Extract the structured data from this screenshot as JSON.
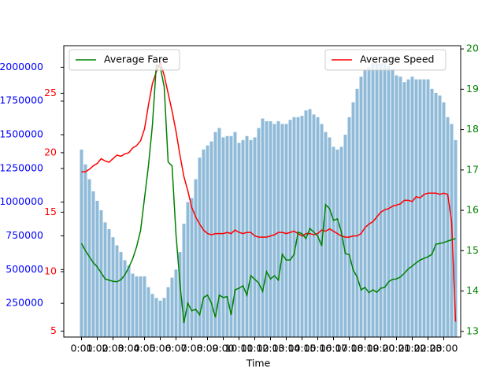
{
  "chart_data": {
    "type": "combo",
    "xlabel": "Time",
    "categories": [
      "0:00",
      null,
      null,
      null,
      "1:00",
      null,
      null,
      null,
      "2:00",
      null,
      null,
      null,
      "3:00",
      null,
      null,
      null,
      "4:00",
      null,
      null,
      null,
      "5:00",
      null,
      null,
      null,
      "6:00",
      null,
      null,
      null,
      "7:00",
      null,
      null,
      null,
      "8:00",
      null,
      null,
      null,
      "9:00",
      null,
      null,
      null,
      "10:00",
      null,
      null,
      null,
      "11:00",
      null,
      null,
      null,
      "12:00",
      null,
      null,
      null,
      "13:00",
      null,
      null,
      null,
      "14:00",
      null,
      null,
      null,
      "15:00",
      null,
      null,
      null,
      "16:00",
      null,
      null,
      null,
      "17:00",
      null,
      null,
      null,
      "18:00",
      null,
      null,
      null,
      "19:00",
      null,
      null,
      null,
      "20:00",
      null,
      null,
      null,
      "21:00",
      null,
      null,
      null,
      "22:00",
      null,
      null,
      null,
      "23:00",
      null,
      null,
      null
    ],
    "ylim": [
      0,
      2160000
    ],
    "yticks": [
      250000,
      500000,
      750000,
      1000000,
      1250000,
      1500000,
      1750000,
      2000000
    ],
    "ycolor": "blue",
    "y2lim": [
      4.5,
      29.0
    ],
    "y2ticks": [
      5,
      10,
      15,
      20,
      25
    ],
    "y2color": "red",
    "y3lim": [
      12.86,
      20.08
    ],
    "y3ticks": [
      13,
      14,
      15,
      16,
      17,
      18,
      19,
      20
    ],
    "y3color": "green",
    "series": [
      {
        "type": "bar",
        "axis": "y",
        "color": "#1f77b4",
        "values": [
          1390000,
          1280000,
          1170000,
          1080000,
          1010000,
          940000,
          850000,
          800000,
          740000,
          680000,
          630000,
          570000,
          530000,
          470000,
          450000,
          450000,
          450000,
          370000,
          320000,
          290000,
          270000,
          290000,
          370000,
          440000,
          500000,
          630000,
          840000,
          1000000,
          1030000,
          1170000,
          1330000,
          1390000,
          1420000,
          1450000,
          1520000,
          1550000,
          1480000,
          1490000,
          1490000,
          1520000,
          1440000,
          1460000,
          1490000,
          1460000,
          1480000,
          1550000,
          1620000,
          1600000,
          1600000,
          1580000,
          1600000,
          1580000,
          1580000,
          1610000,
          1630000,
          1630000,
          1640000,
          1680000,
          1690000,
          1650000,
          1630000,
          1580000,
          1520000,
          1480000,
          1410000,
          1390000,
          1410000,
          1500000,
          1630000,
          1740000,
          1840000,
          1930000,
          1980000,
          2000000,
          2030000,
          2030000,
          2030000,
          2030000,
          2010000,
          1990000,
          1940000,
          1930000,
          1890000,
          1910000,
          1930000,
          1910000,
          1910000,
          1910000,
          1910000,
          1840000,
          1810000,
          1790000,
          1740000,
          1630000,
          1580000,
          1460000
        ]
      },
      {
        "type": "line",
        "axis": "y2",
        "name": "Average Speed",
        "color": "red",
        "legend": "upper right",
        "values": [
          18.4,
          18.4,
          18.6,
          18.9,
          19.1,
          19.5,
          19.3,
          19.2,
          19.5,
          19.8,
          19.7,
          19.9,
          20.0,
          20.4,
          20.6,
          21.0,
          22.0,
          24.0,
          25.8,
          26.8,
          27.6,
          26.5,
          25.0,
          23.5,
          21.8,
          19.8,
          18.0,
          16.8,
          15.4,
          14.6,
          14.0,
          13.5,
          13.2,
          13.1,
          13.2,
          13.2,
          13.2,
          13.3,
          13.2,
          13.5,
          13.3,
          13.2,
          13.3,
          13.3,
          13.0,
          12.9,
          12.9,
          12.9,
          13.0,
          13.1,
          13.3,
          13.3,
          13.2,
          13.3,
          13.4,
          13.2,
          13.0,
          13.2,
          13.2,
          13.1,
          13.2,
          13.5,
          13.4,
          13.6,
          13.4,
          13.2,
          13.0,
          12.9,
          12.9,
          13.0,
          13.0,
          13.2,
          13.7,
          14.0,
          14.2,
          14.6,
          15.0,
          15.2,
          15.3,
          15.5,
          15.6,
          15.7,
          16.0,
          16.0,
          15.9,
          16.3,
          16.2,
          16.5,
          16.6,
          16.6,
          16.6,
          16.5,
          16.6,
          16.5,
          14.2,
          5.8
        ]
      },
      {
        "type": "line",
        "axis": "y3",
        "name": "Average Fare",
        "color": "green",
        "legend": "upper left",
        "values": [
          15.18,
          15.0,
          14.85,
          14.7,
          14.6,
          14.45,
          14.3,
          14.27,
          14.24,
          14.23,
          14.28,
          14.4,
          14.58,
          14.8,
          15.1,
          15.5,
          16.3,
          17.1,
          18.1,
          19.6,
          19.55,
          19.06,
          17.2,
          17.1,
          15.4,
          14.2,
          13.21,
          13.7,
          13.51,
          13.55,
          13.41,
          13.84,
          13.9,
          13.7,
          13.35,
          13.9,
          13.84,
          13.86,
          13.41,
          14.03,
          14.07,
          14.13,
          13.9,
          14.38,
          14.29,
          14.2,
          13.99,
          14.48,
          14.3,
          14.38,
          14.27,
          14.91,
          14.77,
          14.77,
          14.91,
          15.46,
          15.42,
          15.3,
          15.55,
          15.46,
          15.36,
          15.12,
          16.14,
          16.04,
          15.75,
          15.79,
          15.46,
          14.93,
          14.9,
          14.52,
          14.35,
          14.03,
          14.09,
          13.96,
          14.03,
          13.97,
          14.07,
          14.09,
          14.23,
          14.29,
          14.3,
          14.35,
          14.44,
          14.55,
          14.62,
          14.7,
          14.77,
          14.81,
          14.85,
          14.91,
          15.16,
          15.18,
          15.2,
          15.24,
          15.27,
          15.3
        ]
      }
    ]
  }
}
